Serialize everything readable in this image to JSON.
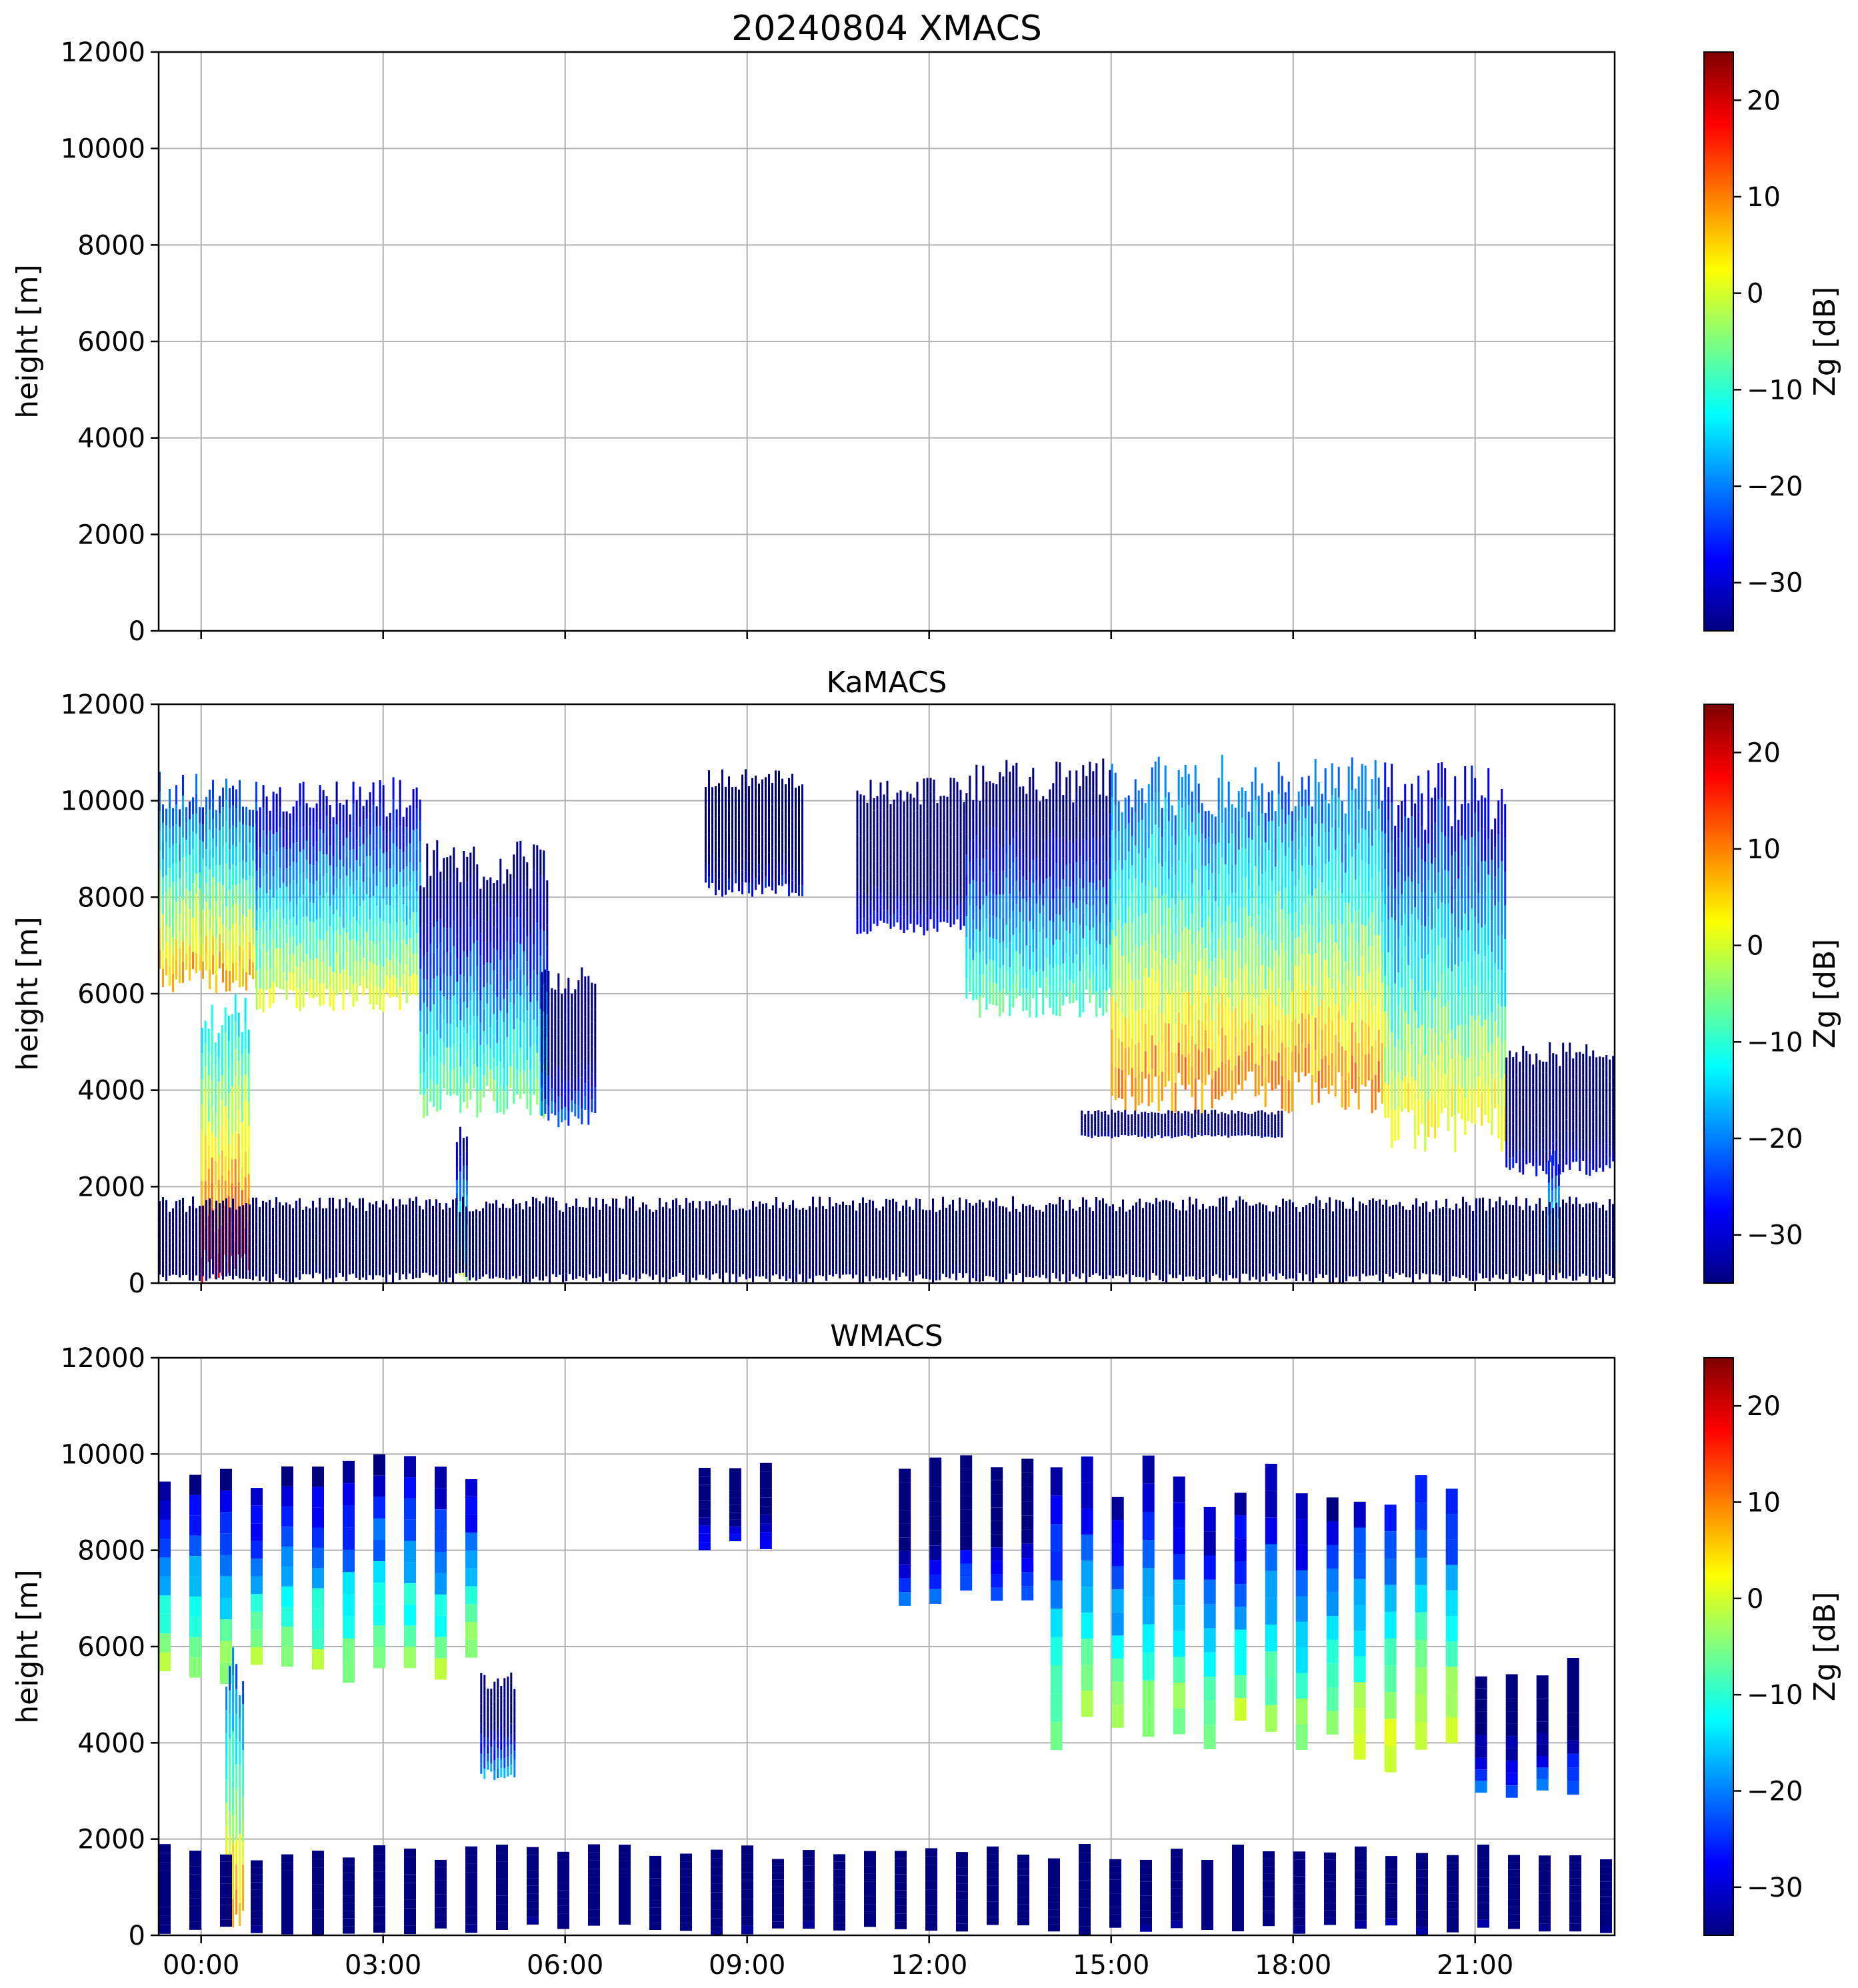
{
  "figure": {
    "time_ticks": [
      "00:00",
      "03:00",
      "06:00",
      "09:00",
      "12:00",
      "15:00",
      "18:00",
      "21:00"
    ],
    "colorscale": [
      "#00007f",
      "#0000ff",
      "#007fff",
      "#00ffff",
      "#7fff7f",
      "#ffff00",
      "#ff7f00",
      "#ff0000",
      "#7f0000"
    ]
  },
  "chart_data": [
    {
      "type": "heatmap",
      "title": "20240804 XMACS",
      "xlabel": "",
      "ylabel": "height [m]",
      "xlim_hours": [
        -0.7,
        23.3
      ],
      "ylim": [
        0,
        12000
      ],
      "yticks": [
        0,
        2000,
        4000,
        6000,
        8000,
        10000,
        12000
      ],
      "colorbar": {
        "label": "Zg [dB]",
        "range": [
          -35,
          25
        ],
        "ticks": [
          -30,
          -20,
          -10,
          0,
          10,
          20
        ]
      },
      "cloud_regions": []
    },
    {
      "type": "heatmap",
      "title": "KaMACS",
      "xlabel": "",
      "ylabel": "height [m]",
      "xlim_hours": [
        -0.7,
        23.3
      ],
      "ylim": [
        0,
        12000
      ],
      "yticks": [
        0,
        2000,
        4000,
        6000,
        8000,
        10000,
        12000
      ],
      "colorbar": {
        "label": "Zg [dB]",
        "range": [
          -35,
          25
        ],
        "ticks": [
          -30,
          -20,
          -10,
          0,
          10,
          20
        ]
      },
      "cloud_regions": [
        {
          "t0": -0.7,
          "t1": 0.9,
          "base": 6000,
          "top": 10600,
          "zg_max": 10
        },
        {
          "t0": 0.9,
          "t1": 3.6,
          "base": 5600,
          "top": 10500,
          "zg_max": 3
        },
        {
          "t0": 3.6,
          "t1": 5.7,
          "base": 3400,
          "top": 9200,
          "zg_max": -3
        },
        {
          "t0": 5.6,
          "t1": 6.5,
          "base": 3200,
          "top": 6600,
          "zg_max": -20
        },
        {
          "t0": 8.3,
          "t1": 9.9,
          "base": 8000,
          "top": 10700,
          "zg_max": -25
        },
        {
          "t0": 10.8,
          "t1": 12.6,
          "base": 7200,
          "top": 10500,
          "zg_max": -25
        },
        {
          "t0": 12.6,
          "t1": 15.0,
          "base": 5500,
          "top": 10900,
          "zg_max": -5
        },
        {
          "t0": 15.0,
          "t1": 19.5,
          "base": 3500,
          "top": 11000,
          "zg_max": 12
        },
        {
          "t0": 19.5,
          "t1": 21.5,
          "base": 2700,
          "top": 10800,
          "zg_max": 5
        },
        {
          "t0": 21.5,
          "t1": 23.3,
          "base": 2200,
          "top": 5000,
          "zg_max": -25
        },
        {
          "t0": 14.5,
          "t1": 17.8,
          "base": 3000,
          "top": 3600,
          "zg_max": -28
        },
        {
          "t0": 0.0,
          "t1": 0.8,
          "base": 0,
          "top": 6000,
          "zg_max": 20
        },
        {
          "t0": 4.2,
          "t1": 4.4,
          "base": 0,
          "top": 3500,
          "zg_max": 0
        },
        {
          "t0": 22.2,
          "t1": 22.4,
          "base": 0,
          "top": 2800,
          "zg_max": 5
        },
        {
          "t0": -0.7,
          "t1": 23.3,
          "base": 0,
          "top": 1800,
          "zg_max": -32
        }
      ]
    },
    {
      "type": "heatmap",
      "title": "WMACS",
      "xlabel": "",
      "ylabel": "height [m]",
      "xlim_hours": [
        -0.7,
        23.3
      ],
      "ylim": [
        0,
        12000
      ],
      "yticks": [
        0,
        2000,
        4000,
        6000,
        8000,
        10000,
        12000
      ],
      "colorbar": {
        "label": "Zg [dB]",
        "range": [
          -35,
          25
        ],
        "ticks": [
          -30,
          -20,
          -10,
          0,
          10,
          20
        ]
      },
      "cloud_regions": [
        {
          "t0": -0.7,
          "t1": 4.7,
          "base": 5200,
          "top": 10000,
          "zg_max": 0,
          "striped": true
        },
        {
          "t0": 4.6,
          "t1": 5.2,
          "base": 3200,
          "top": 5500,
          "zg_max": -15
        },
        {
          "t0": 8.2,
          "t1": 9.5,
          "base": 8000,
          "top": 10000,
          "zg_max": -22,
          "striped": true
        },
        {
          "t0": 11.5,
          "t1": 14.0,
          "base": 6800,
          "top": 10000,
          "zg_max": -20,
          "striped": true
        },
        {
          "t0": 14.0,
          "t1": 19.0,
          "base": 3800,
          "top": 10000,
          "zg_max": 0,
          "striped": true
        },
        {
          "t0": 19.0,
          "t1": 21.0,
          "base": 3200,
          "top": 10000,
          "zg_max": 5,
          "striped": true
        },
        {
          "t0": 21.0,
          "t1": 23.0,
          "base": 2800,
          "top": 5800,
          "zg_max": -18,
          "striped": true
        },
        {
          "t0": 0.4,
          "t1": 0.7,
          "base": 0,
          "top": 6000,
          "zg_max": 12
        },
        {
          "t0": -0.7,
          "t1": 23.3,
          "base": 0,
          "top": 1900,
          "zg_max": -32,
          "striped": true
        }
      ]
    }
  ]
}
